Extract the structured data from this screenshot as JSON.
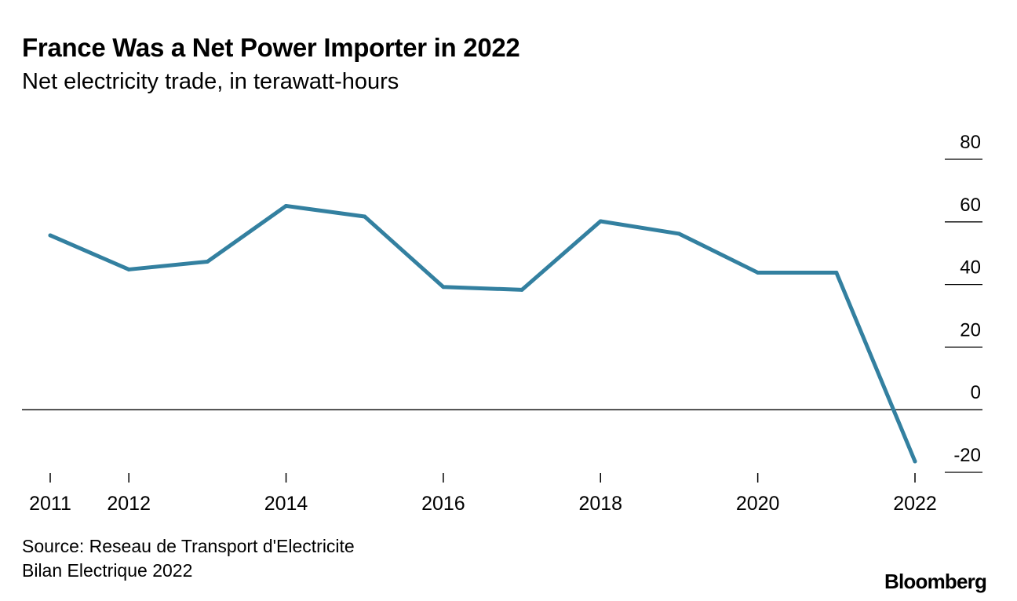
{
  "header": {
    "title": "France Was a Net Power Importer in 2022",
    "subtitle": "Net electricity trade, in terawatt-hours"
  },
  "footer": {
    "source_line1": "Source: Reseau de Transport d'Electricite",
    "source_line2": "Bilan Electrique 2022",
    "brand": "Bloomberg"
  },
  "colors": {
    "line": "#3380a0",
    "axis": "#000000",
    "text": "#000000"
  },
  "chart_data": {
    "type": "line",
    "title": "France Was a Net Power Importer in 2022",
    "subtitle": "Net electricity trade, in terawatt-hours",
    "xlabel": "",
    "ylabel": "",
    "x": [
      2011,
      2012,
      2013,
      2014,
      2015,
      2016,
      2017,
      2018,
      2019,
      2020,
      2021,
      2022
    ],
    "xlim": [
      2011,
      2022
    ],
    "x_ticks": [
      2011,
      2012,
      2014,
      2016,
      2018,
      2020,
      2022
    ],
    "x_tick_labels": [
      "2011",
      "2012",
      "2014",
      "2016",
      "2018",
      "2020",
      "2022"
    ],
    "series": [
      {
        "name": "Net electricity trade",
        "values": [
          55.7,
          44.8,
          47.3,
          65.1,
          61.7,
          39.2,
          38.3,
          60.2,
          56.2,
          43.8,
          43.8,
          -16.5
        ]
      }
    ],
    "ylim": [
      -20,
      80
    ],
    "y_ticks": [
      -20,
      0,
      20,
      40,
      60,
      80
    ],
    "y_tick_labels": [
      "-20",
      "0",
      "20",
      "40",
      "60",
      "80"
    ],
    "zero_line": true,
    "grid": false
  }
}
